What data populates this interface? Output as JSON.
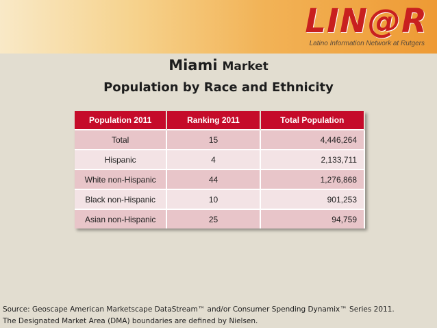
{
  "logo": {
    "text": "LIN@R",
    "tagline": "Latino Information Network at Rutgers"
  },
  "title": {
    "city": "Miami",
    "market": "Market",
    "subtitle": "Population by Race and Ethnicity"
  },
  "table": {
    "headers": [
      "Population 2011",
      "Ranking  2011",
      "Total  Population"
    ],
    "rows": [
      [
        "Total",
        "15",
        "4,446,264"
      ],
      [
        "Hispanic",
        "4",
        "2,133,711"
      ],
      [
        "White non-Hispanic",
        "44",
        "1,276,868"
      ],
      [
        "Black non-Hispanic",
        "10",
        "901,253"
      ],
      [
        "Asian non-Hispanic",
        "25",
        "94,759"
      ]
    ]
  },
  "footer": {
    "line1": "Source: Geoscape American Marketscape DataStream™ and/or Consumer Spending Dynamix™ Series 2011.",
    "line2": "The Designated Market Area (DMA) boundaries are defined by Nielsen."
  },
  "colors": {
    "header_bg": "#c50b2a",
    "logo": "#c8201f",
    "row_odd": "#e8c5c9",
    "row_even": "#f3e3e5"
  }
}
